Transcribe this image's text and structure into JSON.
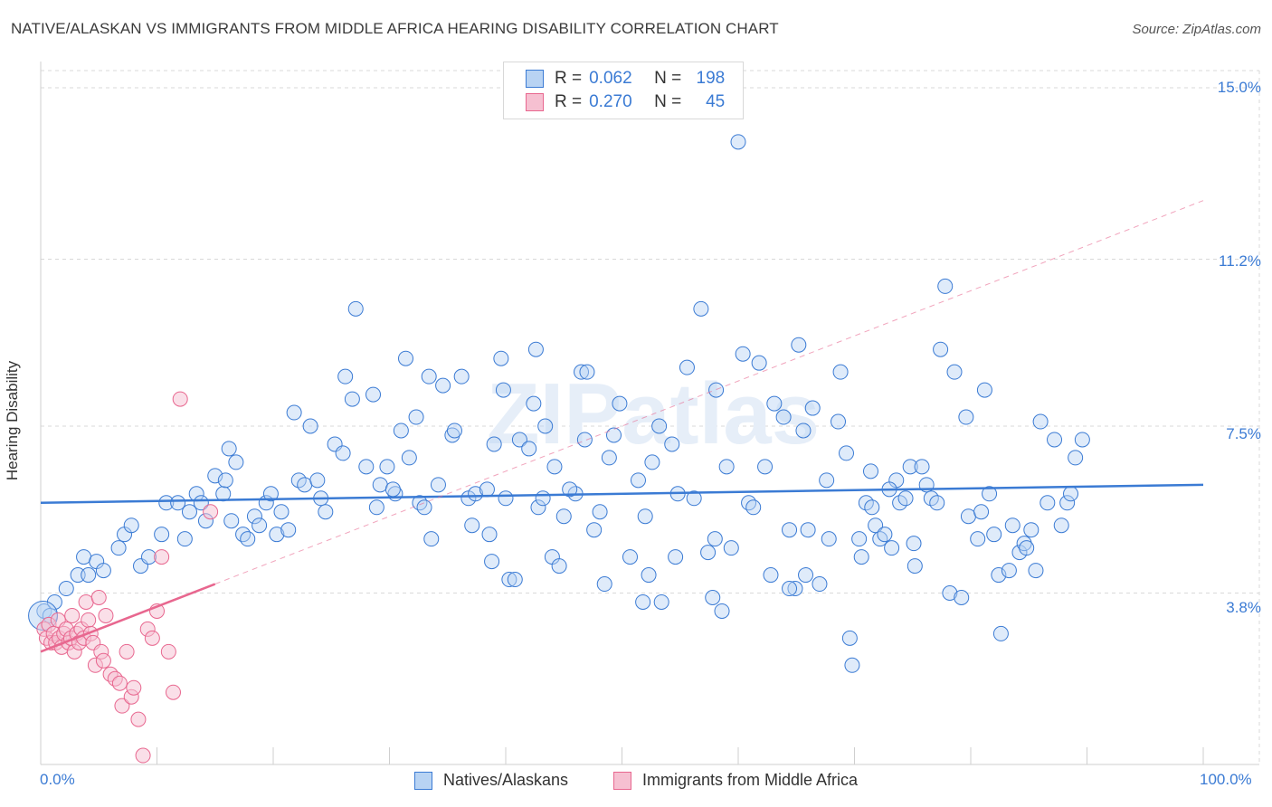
{
  "title": "NATIVE/ALASKAN VS IMMIGRANTS FROM MIDDLE AFRICA HEARING DISABILITY CORRELATION CHART",
  "source": "Source: ZipAtlas.com",
  "watermark": "ZIPatlas",
  "colors": {
    "blue": "#3b7bd4",
    "blue_fill": "#b8d3f3",
    "pink": "#e8678f",
    "pink_fill": "#f6c0d1",
    "grid": "#d9d9d9"
  },
  "legend": {
    "r_label": "R =",
    "n_label": "N =",
    "rows": [
      {
        "r": "0.062",
        "n": "198"
      },
      {
        "r": "0.270",
        "n": "45"
      }
    ]
  },
  "chart_data": {
    "type": "scatter",
    "title": "NATIVE/ALASKAN VS IMMIGRANTS FROM MIDDLE AFRICA HEARING DISABILITY CORRELATION CHART",
    "xlabel": "",
    "ylabel": "Hearing Disability",
    "xlim": [
      0,
      100
    ],
    "ylim": [
      0,
      15.0
    ],
    "x_tick_labels": [
      "0.0%",
      "100.0%"
    ],
    "y_ticks": [
      3.8,
      7.5,
      11.2,
      15.0
    ],
    "y_tick_labels": [
      "3.8%",
      "7.5%",
      "11.2%",
      "15.0%"
    ],
    "grid": true,
    "legend_position": "bottom",
    "series": [
      {
        "name": "Natives/Alaskans",
        "r": 0.062,
        "n": 198,
        "trend": {
          "x": [
            0,
            100
          ],
          "y": [
            5.8,
            6.2
          ]
        },
        "points": [
          [
            0.3,
            3.4
          ],
          [
            0.8,
            3.3
          ],
          [
            1.2,
            3.6
          ],
          [
            2.2,
            3.9
          ],
          [
            3.2,
            4.2
          ],
          [
            3.7,
            4.6
          ],
          [
            4.1,
            4.2
          ],
          [
            4.8,
            4.5
          ],
          [
            5.4,
            4.3
          ],
          [
            6.7,
            4.8
          ],
          [
            7.2,
            5.1
          ],
          [
            7.8,
            5.3
          ],
          [
            8.6,
            4.4
          ],
          [
            9.3,
            4.6
          ],
          [
            10.4,
            5.1
          ],
          [
            10.8,
            5.8
          ],
          [
            11.8,
            5.8
          ],
          [
            12.4,
            5.0
          ],
          [
            12.8,
            5.6
          ],
          [
            13.4,
            6.0
          ],
          [
            13.8,
            5.8
          ],
          [
            14.2,
            5.4
          ],
          [
            15.0,
            6.4
          ],
          [
            15.7,
            6.0
          ],
          [
            15.9,
            6.3
          ],
          [
            16.2,
            7.0
          ],
          [
            16.8,
            6.7
          ],
          [
            16.4,
            5.4
          ],
          [
            17.4,
            5.1
          ],
          [
            17.8,
            5.0
          ],
          [
            18.4,
            5.5
          ],
          [
            18.8,
            5.3
          ],
          [
            19.4,
            5.8
          ],
          [
            19.8,
            6.0
          ],
          [
            20.3,
            5.1
          ],
          [
            20.7,
            5.6
          ],
          [
            21.3,
            5.2
          ],
          [
            21.8,
            7.8
          ],
          [
            22.2,
            6.3
          ],
          [
            22.7,
            6.2
          ],
          [
            23.2,
            7.5
          ],
          [
            23.8,
            6.3
          ],
          [
            24.1,
            5.9
          ],
          [
            24.5,
            5.6
          ],
          [
            25.3,
            7.1
          ],
          [
            26.0,
            6.9
          ],
          [
            26.2,
            8.6
          ],
          [
            26.8,
            8.1
          ],
          [
            27.1,
            10.1
          ],
          [
            28.0,
            6.6
          ],
          [
            28.6,
            8.2
          ],
          [
            28.9,
            5.7
          ],
          [
            29.2,
            6.2
          ],
          [
            29.8,
            6.6
          ],
          [
            30.5,
            6.0
          ],
          [
            30.3,
            6.1
          ],
          [
            31.0,
            7.4
          ],
          [
            31.7,
            6.8
          ],
          [
            31.4,
            9.0
          ],
          [
            32.3,
            7.7
          ],
          [
            32.6,
            5.8
          ],
          [
            33.6,
            5.0
          ],
          [
            33.4,
            8.6
          ],
          [
            34.2,
            6.2
          ],
          [
            34.6,
            8.4
          ],
          [
            35.4,
            7.3
          ],
          [
            35.6,
            7.4
          ],
          [
            36.2,
            8.6
          ],
          [
            36.8,
            5.9
          ],
          [
            37.1,
            5.3
          ],
          [
            37.4,
            6.0
          ],
          [
            38.4,
            6.1
          ],
          [
            38.6,
            5.1
          ],
          [
            38.8,
            4.5
          ],
          [
            39.0,
            7.1
          ],
          [
            39.6,
            9.0
          ],
          [
            39.8,
            8.3
          ],
          [
            40.3,
            4.1
          ],
          [
            40.8,
            4.1
          ],
          [
            41.2,
            7.2
          ],
          [
            42.0,
            7.0
          ],
          [
            42.4,
            8.0
          ],
          [
            42.8,
            5.7
          ],
          [
            42.6,
            9.2
          ],
          [
            43.2,
            5.9
          ],
          [
            43.4,
            7.5
          ],
          [
            44.0,
            4.6
          ],
          [
            44.2,
            6.6
          ],
          [
            44.6,
            4.4
          ],
          [
            45.0,
            5.5
          ],
          [
            46.0,
            6.0
          ],
          [
            46.5,
            8.7
          ],
          [
            46.8,
            7.2
          ],
          [
            47.0,
            8.7
          ],
          [
            47.6,
            5.2
          ],
          [
            48.1,
            5.6
          ],
          [
            48.5,
            4.0
          ],
          [
            48.9,
            6.8
          ],
          [
            49.3,
            7.3
          ],
          [
            49.8,
            8.0
          ],
          [
            50.7,
            4.6
          ],
          [
            51.4,
            6.3
          ],
          [
            51.8,
            3.6
          ],
          [
            52.3,
            4.2
          ],
          [
            52.6,
            6.7
          ],
          [
            53.2,
            7.5
          ],
          [
            53.4,
            3.6
          ],
          [
            54.3,
            7.1
          ],
          [
            54.8,
            6.0
          ],
          [
            54.6,
            4.6
          ],
          [
            55.6,
            8.8
          ],
          [
            56.2,
            5.9
          ],
          [
            56.8,
            10.1
          ],
          [
            57.4,
            4.7
          ],
          [
            57.8,
            3.7
          ],
          [
            58.1,
            8.3
          ],
          [
            58.6,
            3.4
          ],
          [
            59.0,
            6.6
          ],
          [
            59.4,
            4.8
          ],
          [
            60.4,
            9.1
          ],
          [
            60.9,
            5.8
          ],
          [
            61.3,
            5.7
          ],
          [
            61.8,
            8.9
          ],
          [
            62.3,
            6.6
          ],
          [
            62.8,
            4.2
          ],
          [
            63.1,
            8.0
          ],
          [
            63.9,
            7.7
          ],
          [
            64.4,
            5.2
          ],
          [
            64.9,
            3.9
          ],
          [
            64.4,
            3.9
          ],
          [
            65.2,
            9.3
          ],
          [
            65.6,
            7.4
          ],
          [
            65.8,
            4.2
          ],
          [
            66.4,
            7.9
          ],
          [
            67.0,
            4.0
          ],
          [
            67.6,
            6.3
          ],
          [
            67.8,
            5.0
          ],
          [
            68.6,
            7.6
          ],
          [
            68.8,
            8.7
          ],
          [
            69.3,
            6.9
          ],
          [
            69.6,
            2.8
          ],
          [
            69.8,
            2.2
          ],
          [
            70.4,
            5.0
          ],
          [
            70.6,
            4.6
          ],
          [
            71.0,
            5.8
          ],
          [
            71.4,
            6.5
          ],
          [
            71.8,
            5.3
          ],
          [
            71.5,
            5.7
          ],
          [
            72.2,
            5.0
          ],
          [
            72.6,
            5.1
          ],
          [
            73.2,
            4.8
          ],
          [
            73.6,
            6.3
          ],
          [
            73.9,
            5.8
          ],
          [
            74.4,
            5.9
          ],
          [
            74.8,
            6.6
          ],
          [
            75.1,
            4.9
          ],
          [
            75.2,
            4.4
          ],
          [
            75.8,
            6.6
          ],
          [
            76.2,
            6.2
          ],
          [
            76.6,
            5.9
          ],
          [
            77.1,
            5.8
          ],
          [
            77.4,
            9.2
          ],
          [
            77.8,
            10.6
          ],
          [
            78.2,
            3.8
          ],
          [
            78.6,
            8.7
          ],
          [
            79.2,
            3.7
          ],
          [
            79.6,
            7.7
          ],
          [
            79.8,
            5.5
          ],
          [
            80.6,
            5.0
          ],
          [
            80.9,
            5.6
          ],
          [
            81.2,
            8.3
          ],
          [
            81.6,
            6.0
          ],
          [
            82.0,
            5.1
          ],
          [
            82.4,
            4.2
          ],
          [
            82.6,
            2.9
          ],
          [
            83.3,
            4.3
          ],
          [
            83.6,
            5.3
          ],
          [
            84.2,
            4.7
          ],
          [
            84.6,
            4.9
          ],
          [
            84.8,
            4.8
          ],
          [
            85.2,
            5.2
          ],
          [
            85.6,
            4.3
          ],
          [
            86.0,
            7.6
          ],
          [
            86.6,
            5.8
          ],
          [
            87.2,
            7.2
          ],
          [
            87.8,
            5.3
          ],
          [
            88.3,
            5.8
          ],
          [
            88.6,
            6.0
          ],
          [
            89.0,
            6.8
          ],
          [
            89.6,
            7.2
          ],
          [
            40.0,
            5.9
          ],
          [
            52.0,
            5.5
          ],
          [
            60.0,
            13.8
          ],
          [
            33.0,
            5.7
          ],
          [
            45.5,
            6.1
          ],
          [
            58.0,
            5.0
          ],
          [
            66.0,
            5.2
          ],
          [
            73.0,
            6.1
          ]
        ]
      },
      {
        "name": "Immigrants from Middle Africa",
        "r": 0.27,
        "n": 45,
        "trend": {
          "x": [
            0,
            15
          ],
          "y": [
            2.5,
            4.0
          ],
          "extended_dashed": {
            "x": [
              15,
              100
            ],
            "y": [
              4.0,
              12.5
            ]
          }
        },
        "points": [
          [
            0.3,
            3.0
          ],
          [
            0.5,
            2.8
          ],
          [
            0.7,
            3.1
          ],
          [
            0.9,
            2.7
          ],
          [
            1.1,
            2.9
          ],
          [
            1.3,
            2.7
          ],
          [
            1.5,
            3.2
          ],
          [
            1.6,
            2.8
          ],
          [
            1.8,
            2.6
          ],
          [
            2.0,
            2.9
          ],
          [
            2.2,
            3.0
          ],
          [
            2.4,
            2.7
          ],
          [
            2.6,
            2.8
          ],
          [
            2.7,
            3.3
          ],
          [
            2.9,
            2.5
          ],
          [
            3.1,
            2.9
          ],
          [
            3.3,
            2.7
          ],
          [
            3.5,
            3.0
          ],
          [
            3.7,
            2.8
          ],
          [
            3.9,
            3.6
          ],
          [
            4.1,
            3.2
          ],
          [
            4.3,
            2.9
          ],
          [
            4.5,
            2.7
          ],
          [
            4.7,
            2.2
          ],
          [
            5.0,
            3.7
          ],
          [
            5.2,
            2.5
          ],
          [
            5.4,
            2.3
          ],
          [
            5.6,
            3.3
          ],
          [
            6.0,
            2.0
          ],
          [
            6.4,
            1.9
          ],
          [
            6.8,
            1.8
          ],
          [
            7.0,
            1.3
          ],
          [
            7.4,
            2.5
          ],
          [
            7.8,
            1.5
          ],
          [
            8.0,
            1.7
          ],
          [
            8.4,
            1.0
          ],
          [
            8.8,
            0.2
          ],
          [
            9.2,
            3.0
          ],
          [
            9.6,
            2.8
          ],
          [
            10.0,
            3.4
          ],
          [
            10.4,
            4.6
          ],
          [
            11.0,
            2.5
          ],
          [
            11.4,
            1.6
          ],
          [
            12.0,
            8.1
          ],
          [
            14.6,
            5.6
          ]
        ]
      }
    ]
  },
  "axis": {
    "ylabel": "Hearing Disability",
    "x_left": "0.0%",
    "x_right": "100.0%"
  },
  "y_ticks": [
    {
      "label": "15.0%",
      "value": 15.0
    },
    {
      "label": "11.2%",
      "value": 11.2
    },
    {
      "label": "7.5%",
      "value": 7.5
    },
    {
      "label": "3.8%",
      "value": 3.8
    }
  ],
  "bottom_legend": [
    {
      "label": "Natives/Alaskans"
    },
    {
      "label": "Immigrants from Middle Africa"
    }
  ]
}
